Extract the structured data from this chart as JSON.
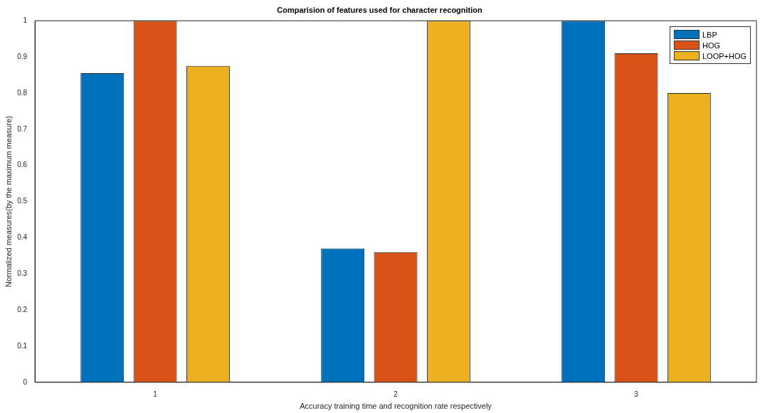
{
  "chart_data": {
    "type": "bar",
    "title": "Comparision of features used for character recognition",
    "xlabel": "Accuracy training time and recognition rate respectively",
    "ylabel": "Normalized measures(by the maximum measure)",
    "categories": [
      "1",
      "2",
      "3"
    ],
    "series": [
      {
        "name": "LBP",
        "color": "#0072bd",
        "values": [
          0.855,
          0.37,
          1
        ]
      },
      {
        "name": "HOG",
        "color": "#d95319",
        "values": [
          1,
          0.36,
          0.91
        ]
      },
      {
        "name": "LOOP+HOG",
        "color": "#edb120",
        "values": [
          0.875,
          1,
          0.8
        ]
      }
    ],
    "ylim": [
      0,
      1
    ],
    "yticks": [
      0,
      0.1,
      0.2,
      0.3,
      0.4,
      0.5,
      0.6,
      0.7,
      0.8,
      0.9,
      1
    ],
    "grid": false,
    "legend": "top right"
  }
}
